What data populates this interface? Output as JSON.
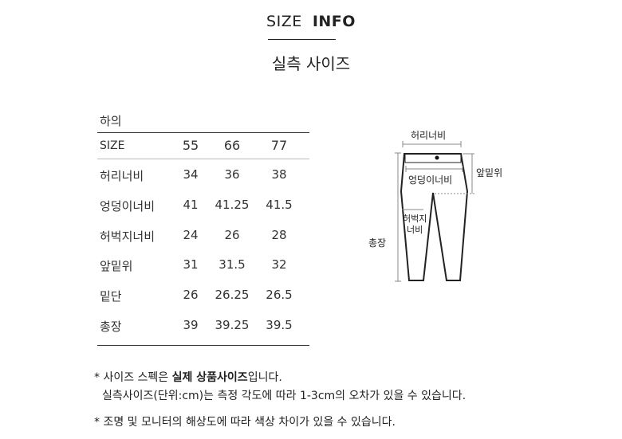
{
  "header": {
    "title_light": "SIZE",
    "title_bold": "INFO",
    "subtitle": "실측 사이즈"
  },
  "table": {
    "category": "하의",
    "columns": [
      "SIZE",
      "55",
      "66",
      "77"
    ],
    "rows": [
      {
        "label": "허리너비",
        "values": [
          "34",
          "36",
          "38"
        ]
      },
      {
        "label": "엉덩이너비",
        "values": [
          "41",
          "41.25",
          "41.5"
        ]
      },
      {
        "label": "허벅지너비",
        "values": [
          "24",
          "26",
          "28"
        ]
      },
      {
        "label": "앞밑위",
        "values": [
          "31",
          "31.5",
          "32"
        ]
      },
      {
        "label": "밑단",
        "values": [
          "26",
          "26.25",
          "26.5"
        ]
      },
      {
        "label": "총장",
        "values": [
          "39",
          "39.25",
          "39.5"
        ]
      }
    ]
  },
  "diagram": {
    "waist": "허리너비",
    "hip": "엉덩이너비",
    "rise": "앞밑위",
    "thigh_1": "허벅지",
    "thigh_2": "너비",
    "length": "총장"
  },
  "notes": {
    "line1_a": "* 사이즈 스펙은 ",
    "line1_b": "실제 상품사이즈",
    "line1_c": "입니다.",
    "line2": "실측사이즈(단위:cm)는 측정 각도에 따라 1-3cm의 오차가 있을 수 있습니다.",
    "line3": "* 조명 및 모니터의 해상도에 따라 색상 차이가 있을 수 있습니다."
  }
}
